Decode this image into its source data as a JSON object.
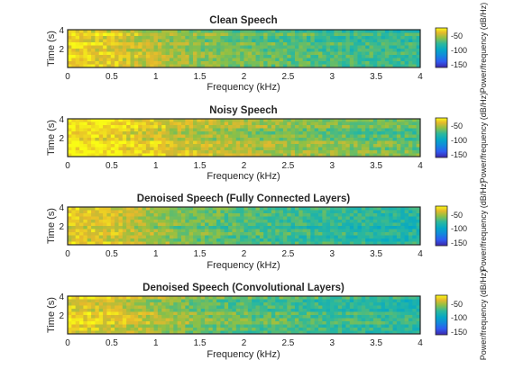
{
  "chart_data": [
    {
      "type": "heatmap",
      "title": "Clean Speech",
      "xlabel": "Frequency (kHz)",
      "ylabel": "Time (s)",
      "xlim": [
        0,
        4
      ],
      "ylim": [
        0,
        4
      ],
      "xticks": [
        "0",
        "0.5",
        "1",
        "1.5",
        "2",
        "2.5",
        "3",
        "3.5",
        "4"
      ],
      "yticks": [
        "2",
        "4"
      ],
      "colorbar": {
        "label": "Power/frequency (dB/Hz)",
        "ticks": [
          "-50",
          "-100",
          "-150"
        ],
        "range": [
          -160,
          -30
        ]
      },
      "intensity_profile": [
        -40,
        -45,
        -55,
        -62,
        -68,
        -72,
        -75,
        -78,
        -80,
        -82
      ]
    },
    {
      "type": "heatmap",
      "title": "Noisy Speech",
      "xlabel": "Frequency (kHz)",
      "ylabel": "Time (s)",
      "xlim": [
        0,
        4
      ],
      "ylim": [
        0,
        4
      ],
      "xticks": [
        "0",
        "0.5",
        "1",
        "1.5",
        "2",
        "2.5",
        "3",
        "3.5",
        "4"
      ],
      "yticks": [
        "2",
        "4"
      ],
      "colorbar": {
        "label": "Power/frequency (dB/Hz)",
        "ticks": [
          "-50",
          "-100",
          "-150"
        ],
        "range": [
          -160,
          -30
        ]
      },
      "intensity_profile": [
        -35,
        -38,
        -45,
        -52,
        -58,
        -62,
        -65,
        -68,
        -70,
        -72
      ]
    },
    {
      "type": "heatmap",
      "title": "Denoised Speech (Fully Connected Layers)",
      "xlabel": "Frequency (kHz)",
      "ylabel": "Time (s)",
      "xlim": [
        0,
        4
      ],
      "ylim": [
        0,
        4
      ],
      "xticks": [
        "0",
        "0.5",
        "1",
        "1.5",
        "2",
        "2.5",
        "3",
        "3.5",
        "4"
      ],
      "yticks": [
        "2",
        "4"
      ],
      "colorbar": {
        "label": "Power/frequency (dB/Hz)",
        "ticks": [
          "-50",
          "-100",
          "-150"
        ],
        "range": [
          -160,
          -30
        ]
      },
      "intensity_profile": [
        -42,
        -48,
        -58,
        -66,
        -72,
        -76,
        -80,
        -82,
        -85,
        -87
      ]
    },
    {
      "type": "heatmap",
      "title": "Denoised Speech (Convolutional Layers)",
      "xlabel": "Frequency (kHz)",
      "ylabel": "Time (s)",
      "xlim": [
        0,
        4
      ],
      "ylim": [
        0,
        4
      ],
      "xticks": [
        "0",
        "0.5",
        "1",
        "1.5",
        "2",
        "2.5",
        "3",
        "3.5",
        "4"
      ],
      "yticks": [
        "2",
        "4"
      ],
      "colorbar": {
        "label": "Power/frequency (dB/Hz)",
        "ticks": [
          "-50",
          "-100",
          "-150"
        ],
        "range": [
          -160,
          -30
        ]
      },
      "intensity_profile": [
        -42,
        -48,
        -57,
        -65,
        -71,
        -75,
        -78,
        -81,
        -84,
        -86
      ]
    }
  ]
}
